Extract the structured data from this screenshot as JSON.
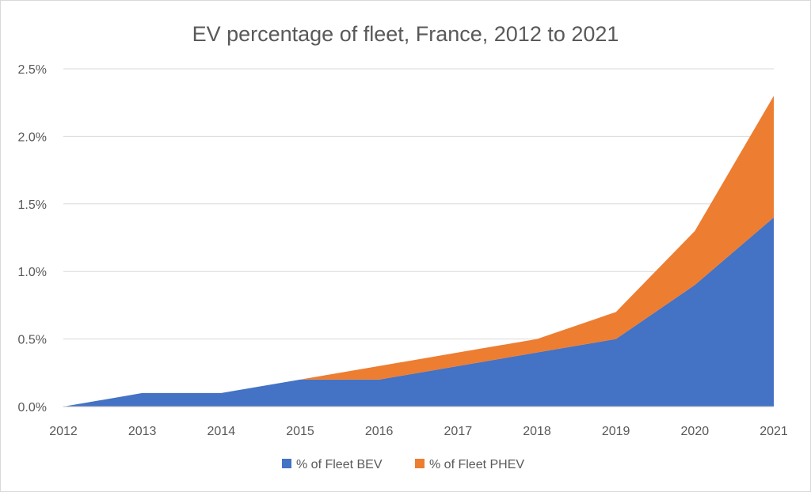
{
  "chart_data": {
    "type": "area",
    "stacked": true,
    "title": "EV percentage of fleet, France, 2012 to 2021",
    "xlabel": "",
    "ylabel": "",
    "x": [
      "2012",
      "2013",
      "2014",
      "2015",
      "2016",
      "2017",
      "2018",
      "2019",
      "2020",
      "2021"
    ],
    "series": [
      {
        "name": "% of Fleet BEV",
        "color": "#4472c4",
        "values": [
          0.0,
          0.1,
          0.1,
          0.2,
          0.2,
          0.3,
          0.4,
          0.5,
          0.9,
          1.4
        ]
      },
      {
        "name": "% of Fleet PHEV",
        "color": "#ed7d31",
        "values": [
          0.0,
          0.0,
          0.0,
          0.0,
          0.1,
          0.1,
          0.1,
          0.2,
          0.4,
          0.9
        ]
      }
    ],
    "ylim": [
      0,
      2.5
    ],
    "yticks": [
      "0.0%",
      "0.5%",
      "1.0%",
      "1.5%",
      "2.0%",
      "2.5%"
    ],
    "ytick_values": [
      0,
      0.5,
      1.0,
      1.5,
      2.0,
      2.5
    ],
    "grid": true,
    "legend_position": "bottom"
  }
}
